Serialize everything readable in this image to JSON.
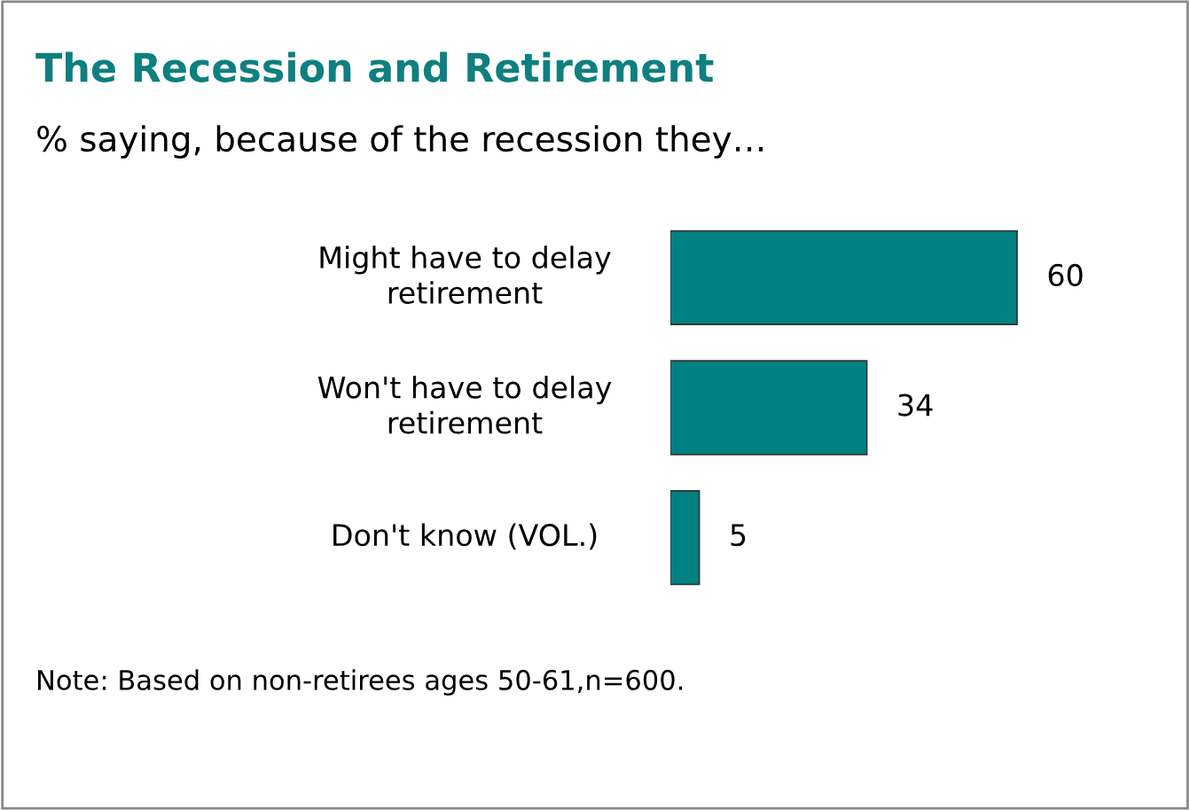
{
  "chart_data": {
    "type": "bar",
    "orientation": "horizontal",
    "title": "The Recession and Retirement",
    "subtitle": "% saying, because of the recession they…",
    "categories": [
      "Might have to delay\nretirement",
      "Won't have to delay\nretirement",
      "Don't know (VOL.)"
    ],
    "values": [
      60,
      34,
      5
    ],
    "color": "#008080",
    "data_labels": true,
    "annotations": [
      "Note: Based on non-retirees ages 50-61,n=600."
    ]
  }
}
